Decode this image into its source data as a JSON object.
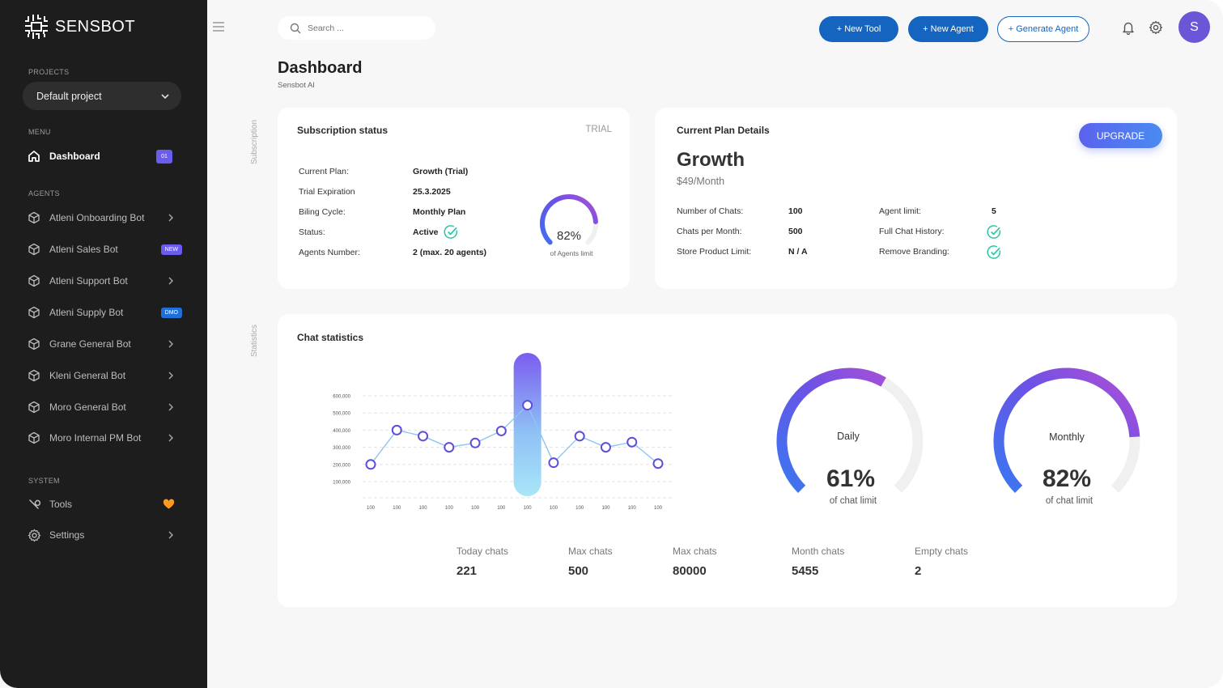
{
  "app": {
    "name": "SENSBOT"
  },
  "sidebar": {
    "projects_label": "PROJECTS",
    "project_selected": "Default project",
    "menu_label": "MENU",
    "dashboard": {
      "label": "Dashboard",
      "badge": "01"
    },
    "agents_label": "AGENTS",
    "agents": [
      {
        "label": "Atleni Onboarding Bot",
        "badge": ""
      },
      {
        "label": "Atleni Sales Bot",
        "badge": "NEW"
      },
      {
        "label": "Atleni Support Bot",
        "badge": ""
      },
      {
        "label": "Atleni Supply Bot",
        "badge": "DMO"
      },
      {
        "label": "Grane General Bot",
        "badge": ""
      },
      {
        "label": "Kleni General Bot",
        "badge": ""
      },
      {
        "label": "Moro General Bot",
        "badge": ""
      },
      {
        "label": "Moro Internal PM  Bot",
        "badge": ""
      }
    ],
    "system_label": "SYSTEM",
    "tools_label": "Tools",
    "settings_label": "Settings"
  },
  "topbar": {
    "search_placeholder": "Search ...",
    "new_tool": "+ New Tool",
    "new_agent": "+ New Agent",
    "generate_agent": "+ Generate Agent",
    "avatar_initial": "S"
  },
  "page": {
    "title": "Dashboard",
    "subtitle": "Sensbot AI"
  },
  "section_labels": {
    "subscription": "Subscription",
    "statistics": "Statistics"
  },
  "subscription": {
    "title": "Subscription status",
    "tag": "TRIAL",
    "rows": [
      {
        "label": "Current Plan:",
        "value": "Growth (Trial)"
      },
      {
        "label": "Trial Expiration",
        "value": "25.3.2025"
      },
      {
        "label": "Biling Cycle:",
        "value": "Monthly Plan"
      },
      {
        "label": "Status:",
        "value": "Active"
      },
      {
        "label": "Agents Number:",
        "value": "2 (max. 20 agents)"
      }
    ],
    "gauge": {
      "value": "82%",
      "percent": 82,
      "caption": "of Agents limit"
    }
  },
  "plan": {
    "title": "Current Plan Details",
    "name": "Growth",
    "price": "$49/Month",
    "upgrade": "UPGRADE",
    "left_rows": [
      {
        "label": "Number of Chats:",
        "value": "100"
      },
      {
        "label": "Chats per Month:",
        "value": "500"
      },
      {
        "label": "Store Product Limit:",
        "value": "N / A"
      }
    ],
    "right_rows": [
      {
        "label": "Agent limit:",
        "value": "5"
      },
      {
        "label": "Full Chat History:",
        "value": ""
      },
      {
        "label": "Remove Branding:",
        "value": ""
      }
    ]
  },
  "stats": {
    "title": "Chat statistics",
    "daily": {
      "label": "Daily",
      "value": "61%",
      "percent": 61,
      "caption": "of chat limit"
    },
    "monthly": {
      "label": "Monthly",
      "value": "82%",
      "percent": 82,
      "caption": "of chat limit"
    },
    "summary": [
      {
        "label": "Today chats",
        "value": "221"
      },
      {
        "label": "Max chats",
        "value": "500"
      },
      {
        "label": "Max chats",
        "value": "80000"
      },
      {
        "label": "Month chats",
        "value": "5455"
      },
      {
        "label": "Empty chats",
        "value": "2"
      }
    ]
  },
  "chart_data": {
    "type": "line",
    "title": "",
    "categories": [
      "100",
      "100",
      "100",
      "100",
      "100",
      "100",
      "100",
      "100",
      "100",
      "100",
      "100",
      "100"
    ],
    "values": [
      200000,
      400000,
      365000,
      300000,
      325000,
      395000,
      545000,
      210000,
      365000,
      300000,
      330000,
      205000
    ],
    "y_ticks": [
      "600,000",
      "500,000",
      "400,000",
      "300,000",
      "200,000",
      "100,000"
    ],
    "ylim": [
      0,
      600000
    ],
    "highlight_index": 6,
    "line_color": "#8ec5f2",
    "point_color": "#5d4ed8"
  }
}
